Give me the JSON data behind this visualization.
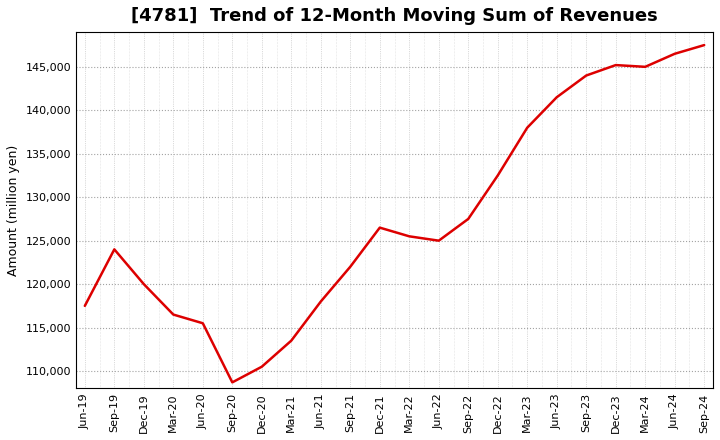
{
  "title": "[4781]  Trend of 12-Month Moving Sum of Revenues",
  "ylabel": "Amount (million yen)",
  "line_color": "#dd0000",
  "background_color": "#ffffff",
  "plot_bg_color": "#ffffff",
  "grid_color": "#999999",
  "ylim": [
    108000,
    149000
  ],
  "yticks": [
    110000,
    115000,
    120000,
    125000,
    130000,
    135000,
    140000,
    145000
  ],
  "values": [
    117500,
    124000,
    120000,
    116500,
    115500,
    108700,
    110500,
    113500,
    118000,
    122000,
    126500,
    125500,
    125000,
    127500,
    132500,
    138000,
    141500,
    144000,
    145200,
    145000,
    146500,
    147500
  ],
  "xtick_labels": [
    "Jun-19",
    "Sep-19",
    "Dec-19",
    "Mar-20",
    "Jun-20",
    "Sep-20",
    "Dec-20",
    "Mar-21",
    "Jun-21",
    "Sep-21",
    "Dec-21",
    "Mar-22",
    "Jun-22",
    "Sep-22",
    "Dec-22",
    "Mar-23",
    "Jun-23",
    "Sep-23",
    "Dec-23",
    "Mar-24",
    "Jun-24",
    "Sep-24"
  ],
  "title_fontsize": 13,
  "axis_fontsize": 9,
  "tick_fontsize": 8
}
